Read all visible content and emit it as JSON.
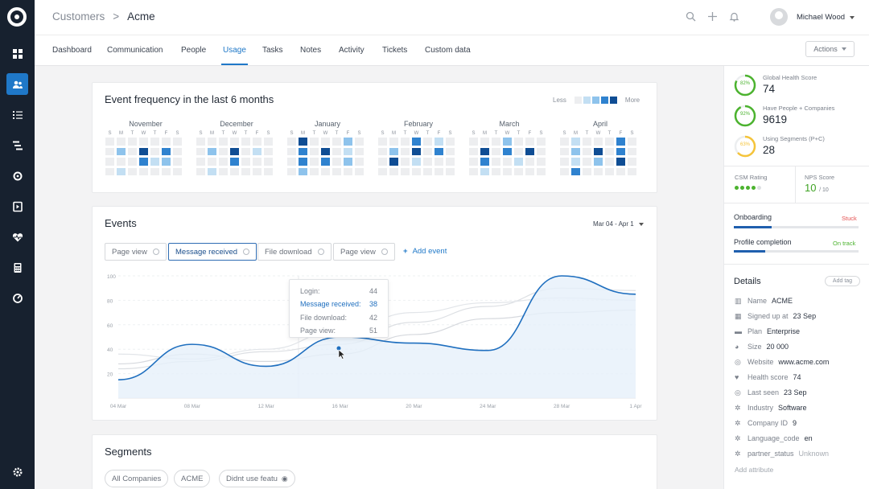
{
  "nav": {
    "breadcrumb_root": "Customers",
    "breadcrumb_sep": ">",
    "breadcrumb_current": "Acme",
    "user_name": "Michael Wood"
  },
  "tabs": [
    "Dashboard",
    "Communication",
    "People",
    "Usage",
    "Tasks",
    "Notes",
    "Activity",
    "Tickets",
    "Custom data"
  ],
  "active_tab": "Usage",
  "actions_label": "Actions",
  "frequency": {
    "title": "Event frequency in the last 6 months",
    "legend_less": "Less",
    "legend_more": "More",
    "weekdays": [
      "S",
      "M",
      "T",
      "W",
      "T",
      "F",
      "S"
    ],
    "months": [
      {
        "name": "November",
        "cells": [
          0,
          0,
          0,
          0,
          0,
          0,
          0,
          0,
          2,
          0,
          4,
          0,
          3,
          0,
          0,
          0,
          0,
          3,
          1,
          2,
          0,
          0,
          1,
          0,
          0,
          0,
          0,
          0
        ]
      },
      {
        "name": "December",
        "cells": [
          0,
          0,
          0,
          0,
          0,
          0,
          0,
          0,
          2,
          0,
          4,
          0,
          1,
          0,
          0,
          0,
          0,
          3,
          0,
          0,
          0,
          0,
          1,
          0,
          0,
          0,
          0,
          0
        ]
      },
      {
        "name": "January",
        "cells": [
          0,
          4,
          0,
          0,
          0,
          2,
          0,
          0,
          3,
          0,
          4,
          0,
          1,
          0,
          0,
          3,
          0,
          3,
          0,
          2,
          0,
          0,
          2,
          0,
          0,
          0,
          0,
          0
        ]
      },
      {
        "name": "February",
        "cells": [
          0,
          0,
          0,
          3,
          0,
          1,
          0,
          0,
          2,
          0,
          4,
          0,
          3,
          0,
          0,
          4,
          0,
          1,
          0,
          0,
          0,
          0,
          0,
          0,
          0,
          0,
          0,
          0
        ]
      },
      {
        "name": "March",
        "cells": [
          0,
          0,
          0,
          2,
          0,
          0,
          0,
          0,
          4,
          0,
          3,
          0,
          4,
          0,
          0,
          3,
          0,
          0,
          1,
          0,
          0,
          0,
          1,
          0,
          0,
          0,
          0,
          0
        ]
      },
      {
        "name": "April",
        "cells": [
          0,
          1,
          0,
          0,
          0,
          3,
          0,
          0,
          2,
          0,
          4,
          0,
          3,
          0,
          0,
          1,
          0,
          2,
          0,
          4,
          0,
          0,
          3,
          0,
          0,
          0,
          0,
          0
        ]
      }
    ]
  },
  "events": {
    "title": "Events",
    "range": "Mar 04 - Apr 1",
    "filters": [
      {
        "label": "Page view",
        "selected": false
      },
      {
        "label": "Message received",
        "selected": true
      },
      {
        "label": "File download",
        "selected": false
      },
      {
        "label": "Page view",
        "selected": false
      }
    ],
    "add_event": "Add event",
    "tooltip": [
      {
        "label": "Login:",
        "value": "44"
      },
      {
        "label": "Message received:",
        "value": "38",
        "highlight": true
      },
      {
        "label": "File download:",
        "value": "42"
      },
      {
        "label": "Page view:",
        "value": "51"
      }
    ]
  },
  "chart_data": {
    "type": "area",
    "x": [
      "04 Mar",
      "08 Mar",
      "12 Mar",
      "16 Mar",
      "20 Mar",
      "24 Mar",
      "28 Mar",
      "1 Apr"
    ],
    "yticks": [
      100,
      80,
      60,
      40,
      20
    ],
    "ylim": [
      0,
      100
    ],
    "series": [
      {
        "name": "Message received",
        "values": [
          15,
          44,
          26,
          50,
          45,
          39,
          100,
          85
        ]
      },
      {
        "name": "Login",
        "values": [
          28,
          36,
          30,
          36,
          52,
          65,
          70,
          72
        ]
      },
      {
        "name": "File download",
        "values": [
          24,
          30,
          38,
          44,
          62,
          75,
          90,
          88
        ]
      },
      {
        "name": "Page view",
        "values": [
          36,
          32,
          40,
          55,
          70,
          78,
          82,
          80
        ]
      }
    ]
  },
  "segments": {
    "title": "Segments",
    "items": [
      "All Companies",
      "ACME",
      "Didnt use featu"
    ]
  },
  "scores": [
    {
      "pct": "82%",
      "label": "Global Health Score",
      "value": "74",
      "color": "#4cb32f"
    },
    {
      "pct": "92%",
      "label": "Have People + Companies",
      "value": "9619",
      "color": "#4cb32f"
    },
    {
      "pct": "63%",
      "label": "Using Segments (P+C)",
      "value": "28",
      "color": "#f5c43a"
    }
  ],
  "csm": {
    "label": "CSM Rating",
    "filled": 4,
    "total": 5
  },
  "nps": {
    "label": "NPS Score",
    "value": "10",
    "suffix": "/ 10"
  },
  "progress": [
    {
      "label": "Onboarding",
      "status": "Stuck",
      "status_color": "#e45151",
      "pct": 0.3
    },
    {
      "label": "Profile completion",
      "status": "On track",
      "status_color": "#4cb32f",
      "pct": 0.25
    }
  ],
  "details": {
    "title": "Details",
    "add_tag": "Add tag",
    "add_attribute": "Add attribute",
    "rows": [
      {
        "icon": "building-icon",
        "key": "Name",
        "value": "ACME"
      },
      {
        "icon": "calendar-icon",
        "key": "Signed up at",
        "value": "23 Sep"
      },
      {
        "icon": "briefcase-icon",
        "key": "Plan",
        "value": "Enterprise"
      },
      {
        "icon": "people-icon",
        "key": "Size",
        "value": "20 000"
      },
      {
        "icon": "globe-icon",
        "key": "Website",
        "value": "www.acme.com"
      },
      {
        "icon": "heart-icon",
        "key": "Health score",
        "value": "74"
      },
      {
        "icon": "globe-icon",
        "key": "Last seen",
        "value": "23 Sep"
      },
      {
        "icon": "cogs-icon",
        "key": "Industry",
        "value": "Software"
      },
      {
        "icon": "cogs-icon",
        "key": "Company ID",
        "value": "9"
      },
      {
        "icon": "cogs-icon",
        "key": "Language_code",
        "value": "en"
      },
      {
        "icon": "cogs-icon",
        "key": "partner_status",
        "value": "Unknown",
        "muted": true
      }
    ]
  }
}
